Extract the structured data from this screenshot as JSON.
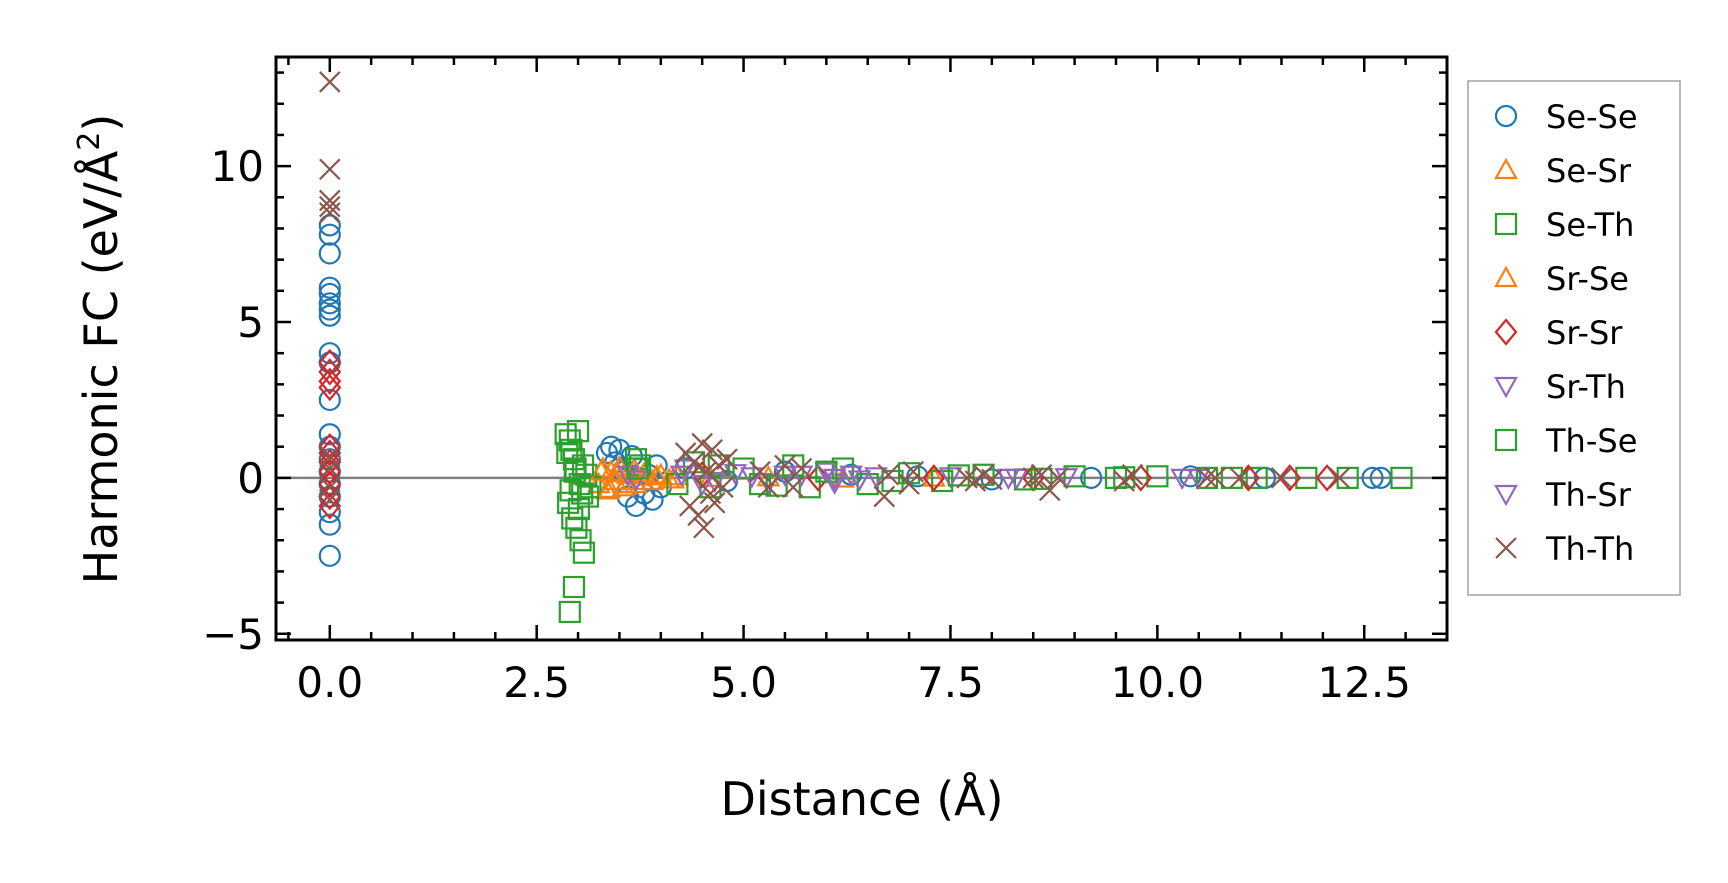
{
  "chart_data": {
    "type": "scatter",
    "title": "",
    "xlabel": "Distance (Å)",
    "ylabel": "Harmonic FC (eV/Å",
    "ylabel_sup": "2",
    "ylabel_close": ")",
    "xlim": [
      -0.65,
      13.5
    ],
    "ylim": [
      -5.2,
      13.5
    ],
    "xticks": [
      0.0,
      2.5,
      5.0,
      7.5,
      10.0,
      12.5
    ],
    "xtick_labels": [
      "0.0",
      "2.5",
      "5.0",
      "7.5",
      "10.0",
      "12.5"
    ],
    "yticks": [
      -5,
      0,
      5,
      10
    ],
    "ytick_labels": [
      "−5",
      "0",
      "5",
      "10"
    ],
    "zero_line": true,
    "legend_position": "outside-right",
    "series": [
      {
        "name": "Se-Se",
        "marker": "circle",
        "color": "#1f77b4",
        "points": [
          [
            0,
            8.1
          ],
          [
            0,
            7.8
          ],
          [
            0,
            7.2
          ],
          [
            0,
            6.1
          ],
          [
            0,
            5.9
          ],
          [
            0,
            5.6
          ],
          [
            0,
            5.4
          ],
          [
            0,
            5.2
          ],
          [
            0,
            4.0
          ],
          [
            0,
            3.7
          ],
          [
            0,
            2.5
          ],
          [
            0,
            1.4
          ],
          [
            0,
            1.0
          ],
          [
            0,
            0.6
          ],
          [
            0,
            0.2
          ],
          [
            0,
            -0.2
          ],
          [
            0,
            -0.6
          ],
          [
            0,
            -1.1
          ],
          [
            0,
            -1.5
          ],
          [
            0,
            -2.5
          ],
          [
            3.35,
            0.8
          ],
          [
            3.4,
            1.0
          ],
          [
            3.45,
            0.5
          ],
          [
            3.5,
            0.9
          ],
          [
            3.55,
            0.2
          ],
          [
            3.6,
            -0.6
          ],
          [
            3.65,
            0.7
          ],
          [
            3.7,
            -0.9
          ],
          [
            3.75,
            0.3
          ],
          [
            3.8,
            -0.5
          ],
          [
            3.85,
            0.1
          ],
          [
            3.9,
            -0.7
          ],
          [
            3.95,
            0.4
          ],
          [
            4.0,
            -0.3
          ],
          [
            4.3,
            0.3
          ],
          [
            4.8,
            -0.1
          ],
          [
            5.5,
            0.2
          ],
          [
            6.3,
            0.1
          ],
          [
            7.1,
            0.05
          ],
          [
            8.0,
            -0.05
          ],
          [
            9.2,
            0.0
          ],
          [
            10.4,
            0.05
          ],
          [
            11.3,
            0.0
          ],
          [
            12.6,
            0.0
          ],
          [
            12.7,
            0.0
          ]
        ]
      },
      {
        "name": "Se-Sr",
        "marker": "triangle-up",
        "color": "#ff7f0e",
        "points": [
          [
            3.25,
            -0.2
          ],
          [
            3.3,
            0.3
          ],
          [
            3.35,
            -0.4
          ],
          [
            3.4,
            0.2
          ],
          [
            3.45,
            -0.1
          ],
          [
            3.5,
            0.35
          ],
          [
            3.55,
            -0.3
          ],
          [
            3.6,
            0.1
          ],
          [
            3.7,
            -0.2
          ],
          [
            3.8,
            0.15
          ],
          [
            3.9,
            -0.1
          ],
          [
            4.0,
            0.1
          ],
          [
            4.1,
            -0.05
          ],
          [
            4.2,
            0.05
          ],
          [
            4.6,
            0.0
          ],
          [
            5.3,
            0.02
          ],
          [
            6.2,
            -0.02
          ],
          [
            7.3,
            0.01
          ]
        ]
      },
      {
        "name": "Se-Th",
        "marker": "square",
        "color": "#2ca02c",
        "points": [
          [
            2.85,
            1.4
          ],
          [
            2.9,
            1.2
          ],
          [
            2.92,
            0.9
          ],
          [
            2.95,
            0.6
          ],
          [
            2.97,
            0.3
          ],
          [
            3.0,
            1.5
          ],
          [
            3.02,
            -0.2
          ],
          [
            3.05,
            -0.5
          ],
          [
            2.88,
            -0.8
          ],
          [
            2.93,
            -1.3
          ],
          [
            2.98,
            -1.6
          ],
          [
            3.03,
            -2.0
          ],
          [
            3.07,
            -2.4
          ],
          [
            2.9,
            -4.3
          ],
          [
            2.95,
            -3.5
          ],
          [
            3.1,
            0.1
          ],
          [
            3.15,
            -0.3
          ],
          [
            3.7,
            0.6
          ],
          [
            3.75,
            0.4
          ],
          [
            4.4,
            0.5
          ],
          [
            4.6,
            -0.3
          ],
          [
            5.0,
            0.3
          ],
          [
            5.2,
            -0.2
          ],
          [
            5.6,
            0.4
          ],
          [
            5.8,
            -0.3
          ],
          [
            6.2,
            0.3
          ],
          [
            6.5,
            -0.2
          ],
          [
            7.0,
            0.15
          ],
          [
            7.4,
            -0.1
          ],
          [
            7.9,
            0.1
          ],
          [
            8.4,
            -0.05
          ],
          [
            9.0,
            0.05
          ],
          [
            9.5,
            0.0
          ],
          [
            10.0,
            0.05
          ],
          [
            10.6,
            0.0
          ],
          [
            11.2,
            0.0
          ],
          [
            11.8,
            0.0
          ],
          [
            12.95,
            0.0
          ]
        ]
      },
      {
        "name": "Sr-Se",
        "marker": "triangle-up",
        "color": "#ff7f0e",
        "points": [
          [
            3.28,
            0.2
          ],
          [
            3.38,
            -0.35
          ],
          [
            3.48,
            0.15
          ],
          [
            3.58,
            -0.2
          ],
          [
            3.68,
            0.25
          ],
          [
            3.78,
            -0.1
          ],
          [
            3.95,
            0.05
          ],
          [
            4.15,
            -0.05
          ]
        ]
      },
      {
        "name": "Sr-Sr",
        "marker": "diamond",
        "color": "#d62728",
        "points": [
          [
            0,
            3.7
          ],
          [
            0,
            3.4
          ],
          [
            0,
            3.1
          ],
          [
            0,
            2.9
          ],
          [
            0,
            1.0
          ],
          [
            0,
            0.8
          ],
          [
            0,
            0.5
          ],
          [
            0,
            0.2
          ],
          [
            0,
            -0.2
          ],
          [
            0,
            -0.6
          ],
          [
            0,
            -0.9
          ],
          [
            4.5,
            0.1
          ],
          [
            5.9,
            0.0
          ],
          [
            7.3,
            0.0
          ],
          [
            8.5,
            0.0
          ],
          [
            9.8,
            0.0
          ],
          [
            11.1,
            0.0
          ],
          [
            11.6,
            0.0
          ],
          [
            12.05,
            0.0
          ]
        ]
      },
      {
        "name": "Sr-Th",
        "marker": "triangle-down",
        "color": "#9467bd",
        "points": [
          [
            3.6,
            0.1
          ],
          [
            3.7,
            -0.05
          ],
          [
            4.3,
            0.3
          ],
          [
            4.5,
            -0.2
          ],
          [
            4.9,
            0.15
          ],
          [
            5.3,
            -0.15
          ],
          [
            5.7,
            0.1
          ],
          [
            6.0,
            0.2
          ],
          [
            6.1,
            -0.15
          ],
          [
            6.3,
            0.1
          ],
          [
            6.6,
            0.05
          ],
          [
            7.5,
            0.05
          ],
          [
            8.3,
            0.0
          ],
          [
            8.9,
            0.02
          ],
          [
            10.5,
            0.0
          ]
        ]
      },
      {
        "name": "Th-Se",
        "marker": "square",
        "color": "#2ca02c",
        "points": [
          [
            2.87,
            0.8
          ],
          [
            2.91,
            -0.4
          ],
          [
            2.96,
            0.2
          ],
          [
            3.01,
            -1.0
          ],
          [
            3.06,
            0.4
          ],
          [
            3.12,
            -0.6
          ],
          [
            3.72,
            0.3
          ],
          [
            4.2,
            -0.2
          ],
          [
            4.7,
            0.4
          ],
          [
            5.4,
            -0.25
          ],
          [
            6.0,
            0.2
          ],
          [
            6.8,
            -0.1
          ],
          [
            7.6,
            0.08
          ],
          [
            8.6,
            -0.03
          ],
          [
            9.6,
            0.02
          ],
          [
            10.9,
            0.0
          ],
          [
            12.3,
            0.0
          ]
        ]
      },
      {
        "name": "Th-Sr",
        "marker": "triangle-down",
        "color": "#9467bd",
        "points": [
          [
            4.25,
            0.1
          ],
          [
            4.65,
            -0.1
          ],
          [
            5.1,
            0.05
          ],
          [
            5.5,
            0.1
          ],
          [
            6.1,
            0.0
          ],
          [
            6.4,
            -0.05
          ],
          [
            8.2,
            0.0
          ],
          [
            10.3,
            0.0
          ]
        ]
      },
      {
        "name": "Th-Th",
        "marker": "x",
        "color": "#8c564b",
        "points": [
          [
            0,
            12.7
          ],
          [
            0,
            9.9
          ],
          [
            0,
            8.9
          ],
          [
            0,
            8.7
          ],
          [
            0,
            8.5
          ],
          [
            0,
            0.7
          ],
          [
            0,
            0.3
          ],
          [
            0,
            -0.3
          ],
          [
            0,
            -0.7
          ],
          [
            4.3,
            0.8
          ],
          [
            4.35,
            -0.9
          ],
          [
            4.4,
            0.5
          ],
          [
            4.45,
            -1.2
          ],
          [
            4.5,
            1.1
          ],
          [
            4.52,
            -1.6
          ],
          [
            4.55,
            0.2
          ],
          [
            4.6,
            -0.5
          ],
          [
            4.62,
            0.9
          ],
          [
            4.65,
            -0.8
          ],
          [
            4.7,
            0.4
          ],
          [
            4.75,
            -0.3
          ],
          [
            4.8,
            0.6
          ],
          [
            5.2,
            0.2
          ],
          [
            5.3,
            -0.3
          ],
          [
            5.5,
            0.4
          ],
          [
            5.6,
            -0.3
          ],
          [
            5.7,
            0.3
          ],
          [
            6.7,
            -0.6
          ],
          [
            6.75,
            0.1
          ],
          [
            7.0,
            -0.2
          ],
          [
            7.05,
            0.2
          ],
          [
            7.7,
            0.0
          ],
          [
            7.8,
            -0.1
          ],
          [
            7.9,
            0.1
          ],
          [
            8.0,
            -0.05
          ],
          [
            8.5,
            0.0
          ],
          [
            8.6,
            0.1
          ],
          [
            8.7,
            -0.4
          ],
          [
            8.8,
            0.0
          ],
          [
            9.6,
            -0.1
          ],
          [
            9.7,
            0.1
          ],
          [
            10.6,
            0.0
          ],
          [
            10.7,
            0.0
          ],
          [
            11.0,
            0.0
          ],
          [
            11.5,
            0.0
          ],
          [
            12.2,
            0.0
          ]
        ]
      }
    ]
  }
}
